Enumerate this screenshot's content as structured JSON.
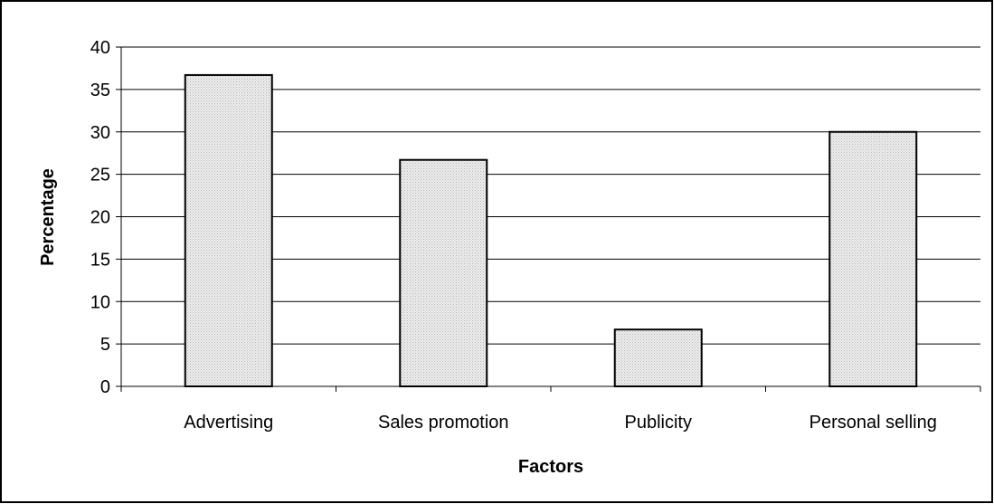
{
  "chart_data": {
    "type": "bar",
    "title": "",
    "xlabel": "Factors",
    "ylabel": "Percentage",
    "categories": [
      "Advertising",
      "Sales promotion",
      "Publicity",
      "Personal selling"
    ],
    "values": [
      36.7,
      26.7,
      6.7,
      30.0
    ],
    "ylim": [
      0,
      40
    ],
    "yticks": [
      "0",
      "5",
      "10",
      "15",
      "20",
      "25",
      "30",
      "35",
      "40"
    ],
    "grid": true,
    "legend": "none",
    "colors": {
      "bar_fill": "#e6e6e6",
      "bar_stroke": "#000000",
      "grid": "#000000",
      "frame": "#000000"
    }
  }
}
